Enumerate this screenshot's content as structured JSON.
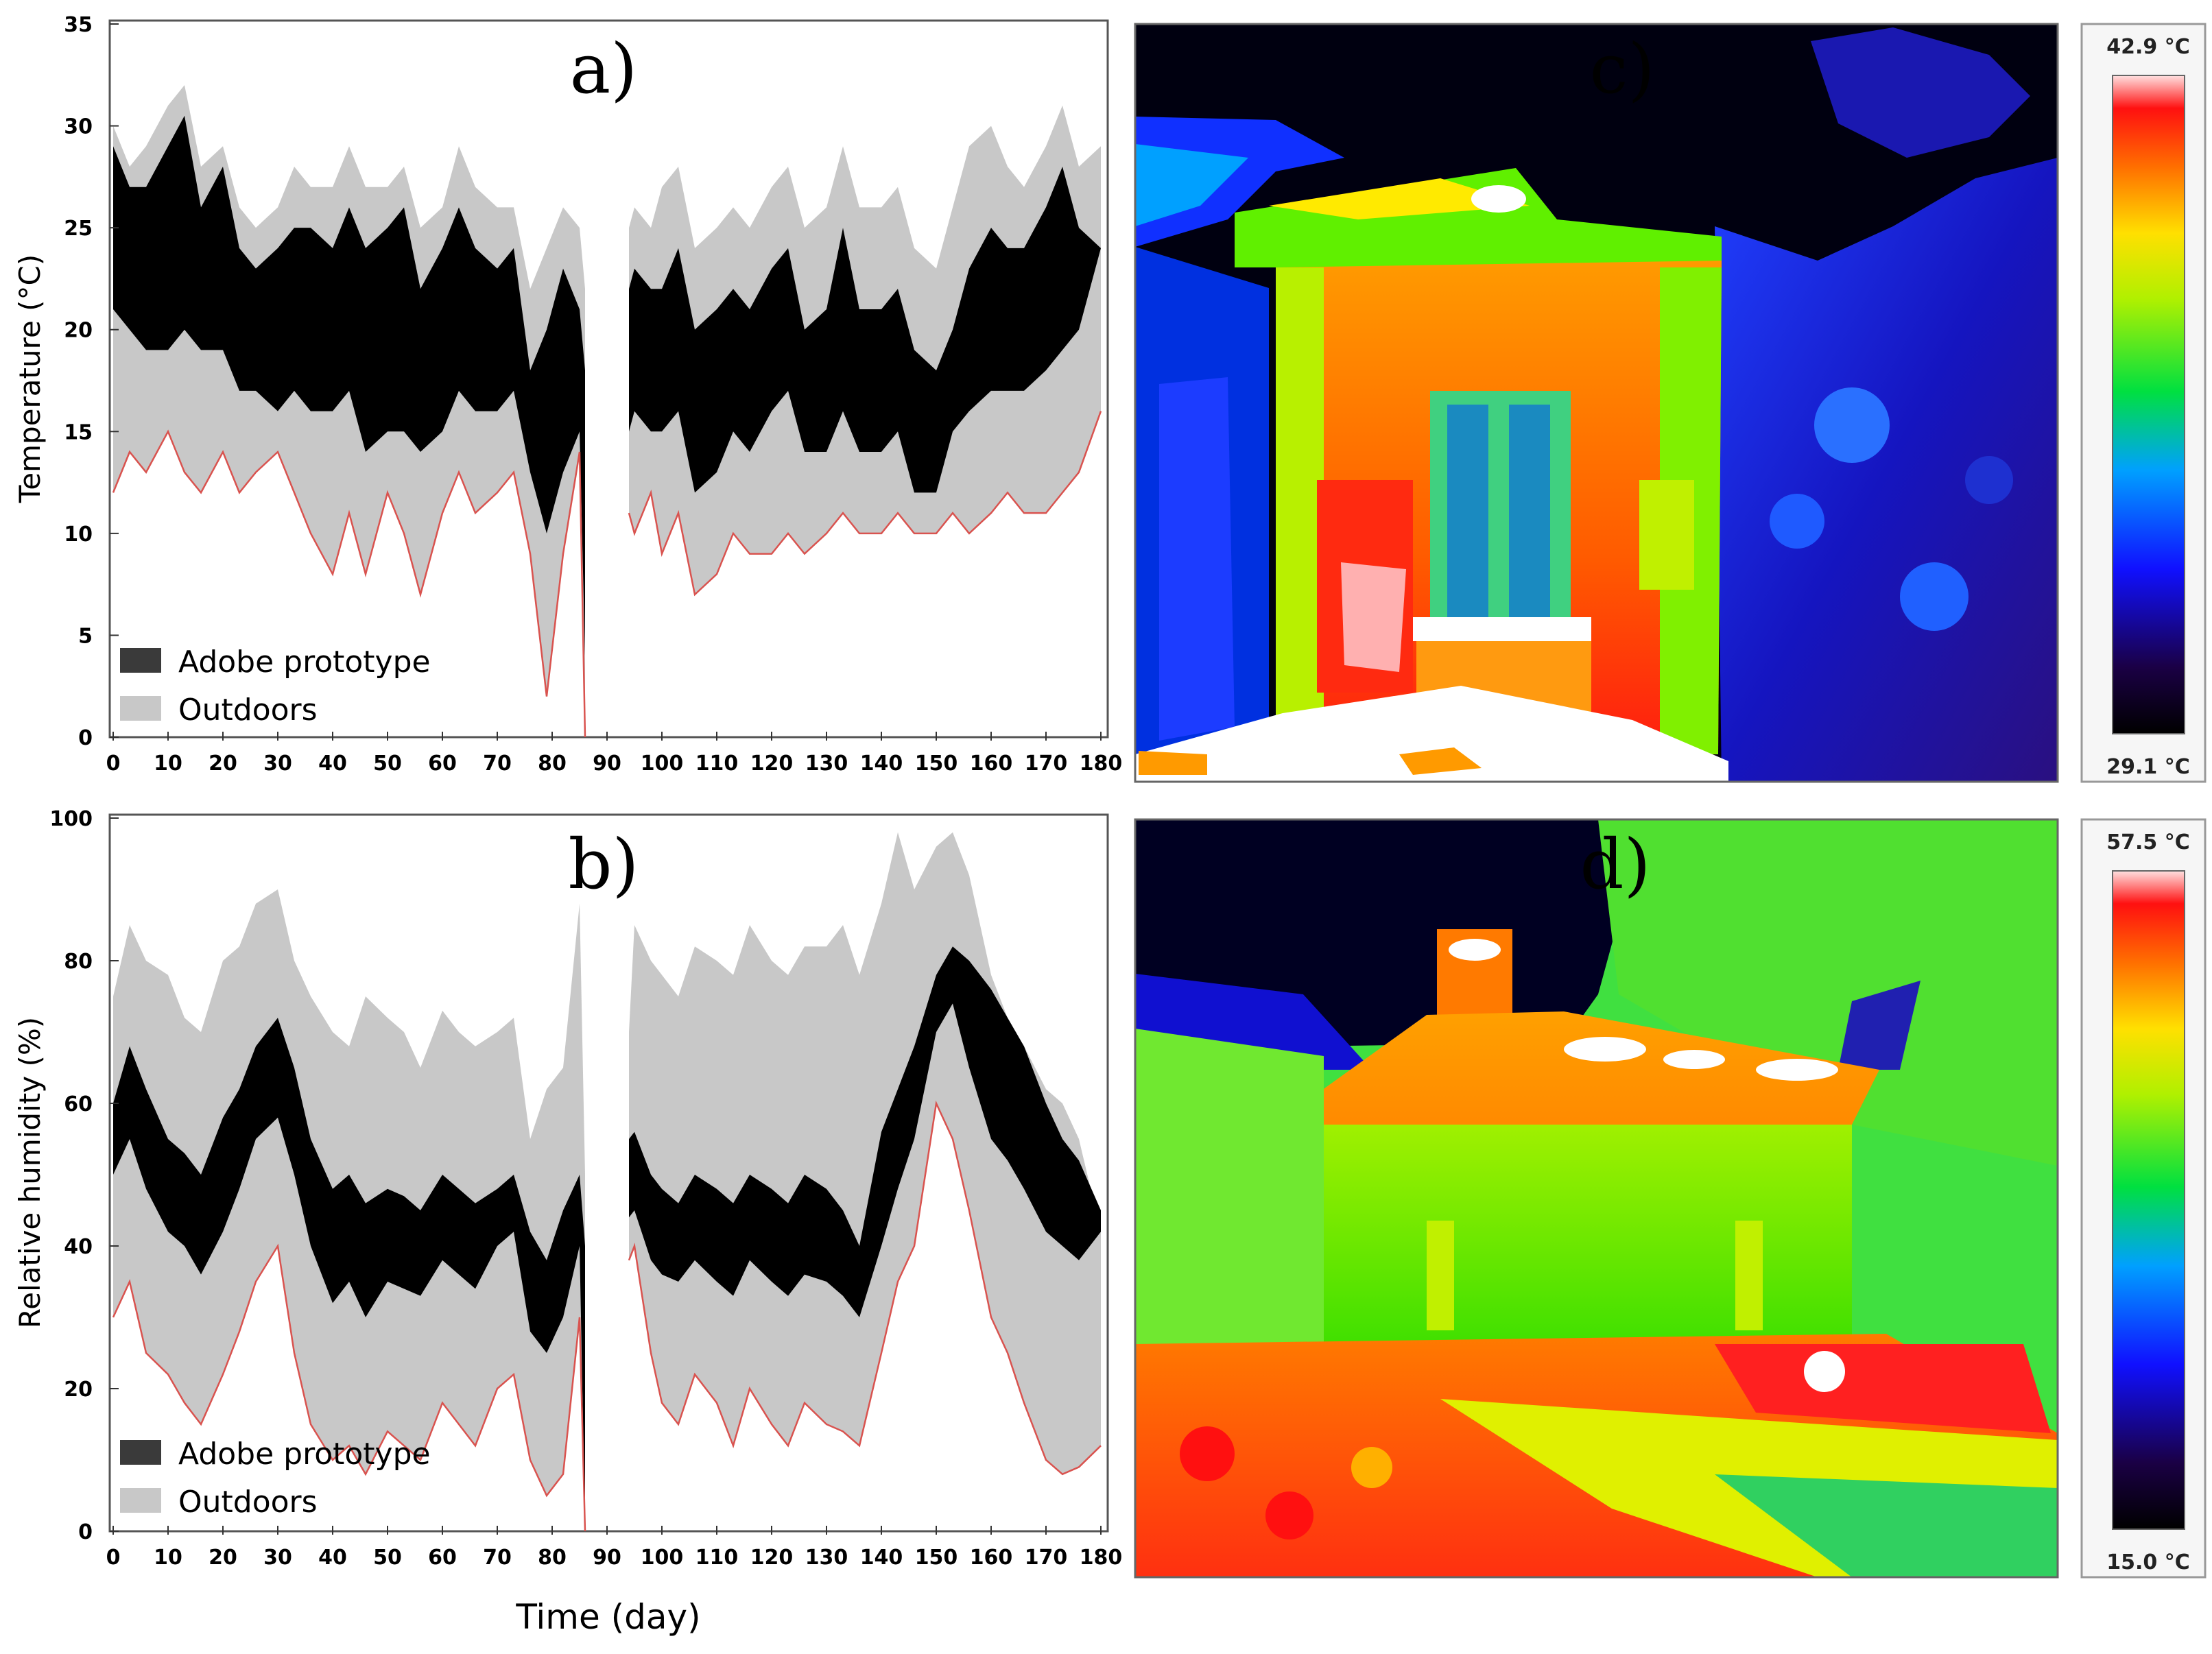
{
  "chart_data": [
    {
      "id": "a",
      "type": "area",
      "panel_label": "a)",
      "xlabel": "",
      "ylabel": "Temperature (°C)",
      "xlim": [
        0,
        180
      ],
      "ylim": [
        0,
        35
      ],
      "xticks": [
        "0",
        "10",
        "20",
        "30",
        "40",
        "50",
        "60",
        "70",
        "80",
        "90",
        "100",
        "110",
        "120",
        "130",
        "140",
        "150",
        "160",
        "170",
        "180"
      ],
      "yticks": [
        "0",
        "5",
        "10",
        "15",
        "20",
        "25",
        "30",
        "35"
      ],
      "legend": [
        "Adobe prototype",
        "Outdoors"
      ],
      "legend_position": "bottom-left",
      "x": [
        0,
        3,
        6,
        10,
        13,
        16,
        20,
        23,
        26,
        30,
        33,
        36,
        40,
        43,
        46,
        50,
        53,
        56,
        60,
        63,
        66,
        70,
        73,
        76,
        79,
        82,
        85,
        86,
        94,
        95,
        98,
        100,
        103,
        106,
        110,
        113,
        116,
        120,
        123,
        126,
        130,
        133,
        136,
        140,
        143,
        146,
        150,
        153,
        156,
        160,
        163,
        166,
        170,
        173,
        176,
        180
      ],
      "series": [
        {
          "name": "Outdoors",
          "role": "max",
          "values": [
            30,
            28,
            29,
            31,
            32,
            28,
            29,
            26,
            25,
            26,
            28,
            27,
            27,
            29,
            27,
            27,
            28,
            25,
            26,
            29,
            27,
            26,
            26,
            22,
            24,
            26,
            25,
            22,
            25,
            26,
            25,
            27,
            28,
            24,
            25,
            26,
            25,
            27,
            28,
            25,
            26,
            29,
            26,
            26,
            27,
            24,
            23,
            26,
            29,
            30,
            28,
            27,
            29,
            31,
            28,
            29
          ]
        },
        {
          "name": "Adobe prototype",
          "role": "max",
          "values": [
            29,
            27,
            27,
            29,
            30.5,
            26,
            28,
            24,
            23,
            24,
            25,
            25,
            24,
            26,
            24,
            25,
            26,
            22,
            24,
            26,
            24,
            23,
            24,
            18,
            20,
            23,
            21,
            18,
            22,
            23,
            22,
            22,
            24,
            20,
            21,
            22,
            21,
            23,
            24,
            20,
            21,
            25,
            21,
            21,
            22,
            19,
            18,
            20,
            23,
            25,
            24,
            24,
            26,
            28,
            25,
            24
          ]
        },
        {
          "name": "Adobe prototype",
          "role": "min",
          "values": [
            21,
            20,
            19,
            19,
            20,
            19,
            19,
            17,
            17,
            16,
            17,
            16,
            16,
            17,
            14,
            15,
            15,
            14,
            15,
            17,
            16,
            16,
            17,
            13,
            10,
            13,
            15,
            4,
            15,
            16,
            15,
            15,
            16,
            12,
            13,
            15,
            14,
            16,
            17,
            14,
            14,
            16,
            14,
            14,
            15,
            12,
            12,
            15,
            16,
            17,
            17,
            17,
            18,
            19,
            20,
            24
          ]
        },
        {
          "name": "Outdoors",
          "role": "min",
          "values": [
            12,
            14,
            13,
            15,
            13,
            12,
            14,
            12,
            13,
            14,
            12,
            10,
            8,
            11,
            8,
            12,
            10,
            7,
            11,
            13,
            11,
            12,
            13,
            9,
            2,
            9,
            14,
            0,
            11,
            10,
            12,
            9,
            11,
            7,
            8,
            10,
            9,
            9,
            10,
            9,
            10,
            11,
            10,
            10,
            11,
            10,
            10,
            11,
            10,
            11,
            12,
            11,
            11,
            12,
            13,
            16
          ]
        }
      ]
    },
    {
      "id": "b",
      "type": "area",
      "panel_label": "b)",
      "xlabel": "Time (day)",
      "ylabel": "Relative humidity (%)",
      "xlim": [
        0,
        180
      ],
      "ylim": [
        0,
        100
      ],
      "xticks": [
        "0",
        "10",
        "20",
        "30",
        "40",
        "50",
        "60",
        "70",
        "80",
        "90",
        "100",
        "110",
        "120",
        "130",
        "140",
        "150",
        "160",
        "170",
        "180"
      ],
      "yticks": [
        "0",
        "20",
        "40",
        "60",
        "80",
        "100"
      ],
      "legend": [
        "Adobe prototype",
        "Outdoors"
      ],
      "legend_position": "bottom-left",
      "x": [
        0,
        3,
        6,
        10,
        13,
        16,
        20,
        23,
        26,
        30,
        33,
        36,
        40,
        43,
        46,
        50,
        53,
        56,
        60,
        63,
        66,
        70,
        73,
        76,
        79,
        82,
        85,
        86,
        94,
        95,
        98,
        100,
        103,
        106,
        110,
        113,
        116,
        120,
        123,
        126,
        130,
        133,
        136,
        140,
        143,
        146,
        150,
        153,
        156,
        160,
        163,
        166,
        170,
        173,
        176,
        180
      ],
      "series": [
        {
          "name": "Outdoors",
          "role": "max",
          "values": [
            75,
            85,
            80,
            78,
            72,
            70,
            80,
            82,
            88,
            90,
            80,
            75,
            70,
            68,
            75,
            72,
            70,
            65,
            73,
            70,
            68,
            70,
            72,
            55,
            62,
            65,
            88,
            50,
            70,
            85,
            80,
            78,
            75,
            82,
            80,
            78,
            85,
            80,
            78,
            82,
            82,
            85,
            78,
            88,
            98,
            90,
            96,
            98,
            92,
            78,
            72,
            68,
            62,
            60,
            55,
            42
          ]
        },
        {
          "name": "Adobe prototype",
          "role": "max",
          "values": [
            60,
            68,
            62,
            55,
            53,
            50,
            58,
            62,
            68,
            72,
            65,
            55,
            48,
            50,
            46,
            48,
            47,
            45,
            50,
            48,
            46,
            48,
            50,
            42,
            38,
            45,
            50,
            40,
            55,
            56,
            50,
            48,
            46,
            50,
            48,
            46,
            50,
            48,
            46,
            50,
            48,
            45,
            40,
            56,
            62,
            68,
            78,
            82,
            80,
            76,
            72,
            68,
            60,
            55,
            52,
            45
          ]
        },
        {
          "name": "Adobe prototype",
          "role": "min",
          "values": [
            50,
            55,
            48,
            42,
            40,
            36,
            42,
            48,
            55,
            58,
            50,
            40,
            32,
            35,
            30,
            35,
            34,
            33,
            38,
            36,
            34,
            40,
            42,
            28,
            25,
            30,
            40,
            0,
            44,
            45,
            38,
            36,
            35,
            38,
            35,
            33,
            38,
            35,
            33,
            36,
            35,
            33,
            30,
            40,
            48,
            55,
            70,
            74,
            65,
            55,
            52,
            48,
            42,
            40,
            38,
            42
          ]
        },
        {
          "name": "Outdoors",
          "role": "min",
          "values": [
            30,
            35,
            25,
            22,
            18,
            15,
            22,
            28,
            35,
            40,
            25,
            15,
            10,
            12,
            8,
            14,
            12,
            10,
            18,
            15,
            12,
            20,
            22,
            10,
            5,
            8,
            30,
            0,
            38,
            40,
            25,
            18,
            15,
            22,
            18,
            12,
            20,
            15,
            12,
            18,
            15,
            14,
            12,
            25,
            35,
            40,
            60,
            55,
            45,
            30,
            25,
            18,
            10,
            8,
            9,
            12
          ]
        }
      ]
    }
  ],
  "thermal_c": {
    "panel_label": "c)",
    "scale_max": "42.9 °C",
    "scale_min": "29.1 °C"
  },
  "thermal_d": {
    "panel_label": "d)",
    "scale_max": "57.5 °C",
    "scale_min": "15.0 °C"
  }
}
